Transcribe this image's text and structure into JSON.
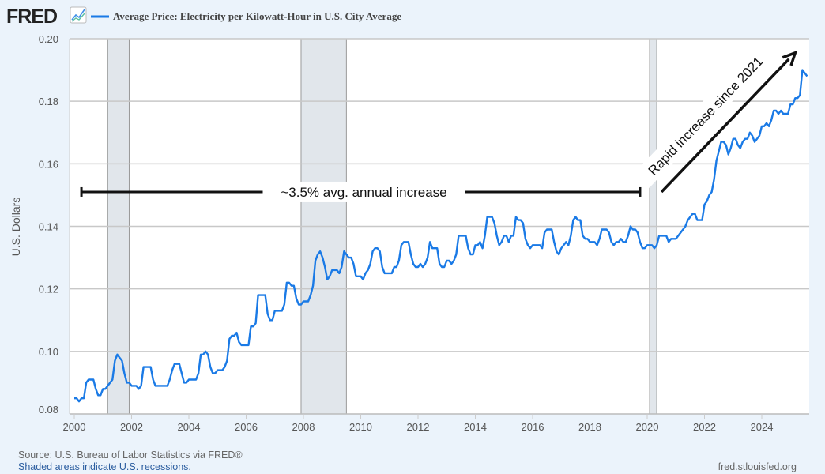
{
  "header": {
    "logo": "FRED",
    "logo_icon": "line-chart-icon",
    "series_title": "Average Price: Electricity per Kilowatt-Hour in U.S. City Average",
    "series_color": "#1a7ae6"
  },
  "footer": {
    "source": "Source: U.S. Bureau of Labor Statistics via FRED®",
    "recession_note": "Shaded areas indicate U.S. recessions.",
    "site": "fred.stlouisfed.org"
  },
  "chart_data": {
    "type": "line",
    "title": "Average Price: Electricity per Kilowatt-Hour in U.S. City Average",
    "ylabel": "U.S. Dollars",
    "xlabel": "",
    "xlim": [
      "1999-11",
      "2025-08"
    ],
    "ylim": [
      0.08,
      0.2
    ],
    "yticks": [
      "0.08",
      "0.10",
      "0.12",
      "0.14",
      "0.16",
      "0.18",
      "0.20"
    ],
    "xticks": [
      "2000",
      "2002",
      "2004",
      "2006",
      "2008",
      "2010",
      "2012",
      "2014",
      "2016",
      "2018",
      "2020",
      "2022",
      "2024"
    ],
    "grid": true,
    "legend": "top",
    "recessions": [
      [
        "2001-03",
        "2001-11"
      ],
      [
        "2007-12",
        "2009-06"
      ],
      [
        "2020-02",
        "2020-04"
      ]
    ],
    "recession_color": "#e1e6eb",
    "annotations": [
      {
        "text": "~3.5% avg. annual increase",
        "kind": "bracket",
        "from": "2000-04",
        "to": "2019-10",
        "y": 0.151
      },
      {
        "text": "Rapid increase since 2021",
        "kind": "arrow",
        "from": [
          "2020-07",
          0.151
        ],
        "to": [
          "2025-03",
          0.1955
        ]
      }
    ],
    "series": [
      {
        "start": "2000-01",
        "frequency": "monthly",
        "values": [
          0.085,
          0.085,
          0.084,
          0.085,
          0.085,
          0.09,
          0.091,
          0.091,
          0.091,
          0.088,
          0.086,
          0.086,
          0.088,
          0.088,
          0.089,
          0.09,
          0.091,
          0.097,
          0.099,
          0.098,
          0.097,
          0.093,
          0.09,
          0.09,
          0.089,
          0.089,
          0.089,
          0.088,
          0.089,
          0.095,
          0.095,
          0.095,
          0.095,
          0.091,
          0.089,
          0.089,
          0.089,
          0.089,
          0.089,
          0.089,
          0.091,
          0.094,
          0.096,
          0.096,
          0.096,
          0.093,
          0.09,
          0.09,
          0.091,
          0.091,
          0.091,
          0.091,
          0.093,
          0.099,
          0.099,
          0.1,
          0.099,
          0.095,
          0.093,
          0.093,
          0.094,
          0.094,
          0.094,
          0.095,
          0.097,
          0.104,
          0.105,
          0.105,
          0.106,
          0.103,
          0.102,
          0.102,
          0.102,
          0.102,
          0.108,
          0.108,
          0.109,
          0.118,
          0.118,
          0.118,
          0.118,
          0.112,
          0.11,
          0.11,
          0.113,
          0.113,
          0.113,
          0.113,
          0.115,
          0.122,
          0.122,
          0.121,
          0.121,
          0.117,
          0.115,
          0.115,
          0.116,
          0.116,
          0.116,
          0.118,
          0.121,
          0.129,
          0.131,
          0.132,
          0.13,
          0.127,
          0.123,
          0.124,
          0.126,
          0.126,
          0.126,
          0.125,
          0.127,
          0.132,
          0.131,
          0.13,
          0.13,
          0.128,
          0.124,
          0.124,
          0.124,
          0.123,
          0.125,
          0.126,
          0.128,
          0.132,
          0.133,
          0.133,
          0.132,
          0.127,
          0.125,
          0.125,
          0.125,
          0.125,
          0.127,
          0.127,
          0.129,
          0.134,
          0.135,
          0.135,
          0.135,
          0.131,
          0.128,
          0.127,
          0.127,
          0.128,
          0.127,
          0.128,
          0.13,
          0.135,
          0.133,
          0.133,
          0.133,
          0.128,
          0.127,
          0.127,
          0.129,
          0.129,
          0.128,
          0.129,
          0.131,
          0.137,
          0.137,
          0.137,
          0.137,
          0.133,
          0.131,
          0.131,
          0.134,
          0.134,
          0.135,
          0.133,
          0.137,
          0.143,
          0.143,
          0.143,
          0.141,
          0.137,
          0.134,
          0.135,
          0.137,
          0.137,
          0.135,
          0.137,
          0.137,
          0.143,
          0.142,
          0.142,
          0.141,
          0.136,
          0.134,
          0.133,
          0.134,
          0.134,
          0.134,
          0.134,
          0.133,
          0.138,
          0.139,
          0.139,
          0.139,
          0.135,
          0.132,
          0.131,
          0.133,
          0.134,
          0.135,
          0.134,
          0.137,
          0.142,
          0.143,
          0.142,
          0.142,
          0.137,
          0.136,
          0.136,
          0.135,
          0.135,
          0.135,
          0.134,
          0.136,
          0.139,
          0.139,
          0.139,
          0.138,
          0.135,
          0.134,
          0.135,
          0.135,
          0.136,
          0.135,
          0.135,
          0.137,
          0.14,
          0.139,
          0.139,
          0.138,
          0.135,
          0.133,
          0.133,
          0.134,
          0.134,
          0.134,
          0.133,
          0.134,
          0.137,
          0.137,
          0.137,
          0.137,
          0.135,
          0.136,
          0.136,
          0.136,
          0.137,
          0.138,
          0.139,
          0.14,
          0.142,
          0.143,
          0.144,
          0.144,
          0.142,
          0.142,
          0.142,
          0.147,
          0.148,
          0.15,
          0.151,
          0.155,
          0.161,
          0.164,
          0.167,
          0.167,
          0.166,
          0.163,
          0.165,
          0.168,
          0.168,
          0.166,
          0.165,
          0.167,
          0.168,
          0.168,
          0.17,
          0.169,
          0.167,
          0.168,
          0.169,
          0.172,
          0.172,
          0.173,
          0.172,
          0.174,
          0.177,
          0.177,
          0.176,
          0.177,
          0.176,
          0.176,
          0.176,
          0.179,
          0.179,
          0.181,
          0.181,
          0.182,
          0.19,
          0.189,
          0.188
        ]
      }
    ]
  }
}
